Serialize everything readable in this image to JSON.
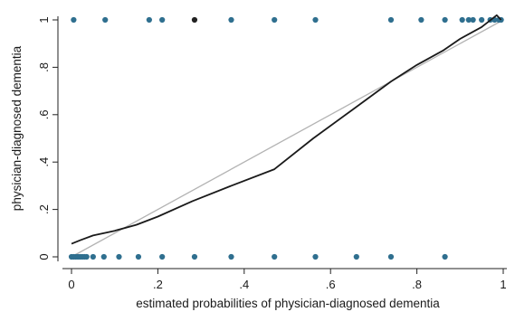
{
  "chart_data": {
    "type": "scatter",
    "title": "",
    "xlabel": "estimated probabilities of physician-diagnosed dementia",
    "ylabel": "physician-diagnosed dementia",
    "xlim": [
      0,
      1
    ],
    "ylim": [
      0,
      1
    ],
    "x_ticks": [
      {
        "value": 0,
        "label": "0"
      },
      {
        "value": 0.2,
        "label": ".2"
      },
      {
        "value": 0.4,
        "label": ".4"
      },
      {
        "value": 0.6,
        "label": ".6"
      },
      {
        "value": 0.8,
        "label": ".8"
      },
      {
        "value": 1,
        "label": "1"
      }
    ],
    "y_ticks": [
      {
        "value": 0,
        "label": "0"
      },
      {
        "value": 0.2,
        "label": ".2"
      },
      {
        "value": 0.4,
        "label": ".4"
      },
      {
        "value": 0.6,
        "label": ".6"
      },
      {
        "value": 0.8,
        "label": ".8"
      },
      {
        "value": 1,
        "label": "1"
      }
    ],
    "grid": false,
    "colors": {
      "points": "#2f6f8f",
      "highlight_point": "#222222",
      "smooth_line": "#1a1a1a",
      "reference_line": "#b3b3b3",
      "axis": "#222222"
    },
    "observed_points": {
      "y1": [
        0.005,
        0.078,
        0.18,
        0.21,
        0.285,
        0.37,
        0.47,
        0.565,
        0.74,
        0.81,
        0.865,
        0.905,
        0.92,
        0.93,
        0.95,
        0.97,
        0.98,
        0.99,
        0.995
      ],
      "y0": [
        0.0,
        0.005,
        0.01,
        0.015,
        0.02,
        0.025,
        0.03,
        0.035,
        0.05,
        0.075,
        0.11,
        0.155,
        0.21,
        0.285,
        0.37,
        0.47,
        0.565,
        0.66,
        0.74,
        0.865
      ],
      "highlight_x": 0.285
    },
    "series": [
      {
        "type": "line",
        "x": [
          0.0,
          0.02,
          0.05,
          0.1,
          0.15,
          0.2,
          0.28,
          0.37,
          0.47,
          0.56,
          0.65,
          0.74,
          0.8,
          0.86,
          0.9,
          0.95,
          0.985,
          0.995
        ],
        "y": [
          0.055,
          0.07,
          0.09,
          0.11,
          0.135,
          0.17,
          0.235,
          0.3,
          0.37,
          0.5,
          0.62,
          0.74,
          0.81,
          0.87,
          0.92,
          0.97,
          1.02,
          1.0
        ]
      },
      {
        "type": "line",
        "x": [
          0,
          1
        ],
        "y": [
          0,
          1
        ]
      }
    ]
  }
}
